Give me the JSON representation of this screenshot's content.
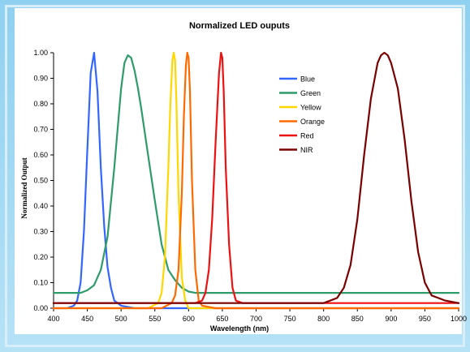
{
  "chart_data": {
    "type": "line",
    "title": "Normalized LED ouputs",
    "xlabel": "Wavelength (nm)",
    "ylabel": "Normalized Output",
    "xlim": [
      400,
      1000
    ],
    "ylim": [
      0,
      1
    ],
    "x_ticks": [
      "400",
      "450",
      "500",
      "550",
      "600",
      "650",
      "700",
      "750",
      "800",
      "850",
      "900",
      "950",
      "1000"
    ],
    "y_ticks": [
      "0.00",
      "0.10",
      "0.20",
      "0.30",
      "0.40",
      "0.50",
      "0.60",
      "0.70",
      "0.80",
      "0.90",
      "1.00"
    ],
    "grid": false,
    "legend_position": "upper-middle-right",
    "series": [
      {
        "name": "Blue",
        "color": "#3366ff",
        "x": [
          400,
          420,
          430,
          435,
          440,
          445,
          450,
          455,
          460,
          465,
          470,
          475,
          480,
          485,
          490,
          500,
          520,
          550,
          600,
          650,
          700,
          800,
          900,
          1000
        ],
        "y": [
          0.0,
          0.0,
          0.01,
          0.03,
          0.1,
          0.3,
          0.62,
          0.92,
          1.0,
          0.85,
          0.55,
          0.32,
          0.16,
          0.08,
          0.03,
          0.01,
          0.0,
          0.0,
          0.0,
          0.0,
          0.0,
          0.0,
          0.0,
          0.0
        ]
      },
      {
        "name": "Green",
        "color": "#2e9b6a",
        "x": [
          400,
          420,
          440,
          450,
          460,
          470,
          480,
          490,
          500,
          505,
          510,
          515,
          520,
          525,
          530,
          540,
          550,
          560,
          570,
          580,
          590,
          600,
          610,
          620,
          650,
          700,
          800,
          900,
          1000
        ],
        "y": [
          0.06,
          0.06,
          0.06,
          0.07,
          0.09,
          0.15,
          0.28,
          0.55,
          0.86,
          0.96,
          0.99,
          0.98,
          0.93,
          0.86,
          0.78,
          0.6,
          0.42,
          0.25,
          0.15,
          0.11,
          0.08,
          0.065,
          0.06,
          0.06,
          0.06,
          0.06,
          0.06,
          0.06,
          0.06
        ]
      },
      {
        "name": "Yellow",
        "color": "#ffd700",
        "x": [
          400,
          540,
          555,
          560,
          565,
          570,
          573,
          576,
          578,
          580,
          582,
          585,
          590,
          595,
          600,
          620,
          700,
          800,
          1000
        ],
        "y": [
          0.0,
          0.0,
          0.02,
          0.06,
          0.2,
          0.55,
          0.8,
          0.97,
          1.0,
          0.97,
          0.8,
          0.45,
          0.12,
          0.03,
          0.0,
          0.0,
          0.0,
          0.0,
          0.0
        ]
      },
      {
        "name": "Orange",
        "color": "#ff6a00",
        "x": [
          400,
          560,
          575,
          580,
          585,
          590,
          593,
          596,
          598,
          600,
          602,
          605,
          610,
          615,
          620,
          640,
          700,
          800,
          1000
        ],
        "y": [
          0.0,
          0.0,
          0.02,
          0.05,
          0.15,
          0.45,
          0.75,
          0.95,
          1.0,
          0.98,
          0.85,
          0.5,
          0.15,
          0.03,
          0.01,
          0.0,
          0.0,
          0.0,
          0.0
        ]
      },
      {
        "name": "Red",
        "color": "#ee1111",
        "x": [
          400,
          610,
          620,
          625,
          630,
          635,
          640,
          645,
          648,
          650,
          652,
          655,
          660,
          665,
          670,
          680,
          700,
          800,
          1000
        ],
        "y": [
          0.02,
          0.02,
          0.03,
          0.06,
          0.15,
          0.35,
          0.65,
          0.92,
          1.0,
          0.98,
          0.85,
          0.55,
          0.25,
          0.08,
          0.03,
          0.02,
          0.02,
          0.02,
          0.02
        ]
      },
      {
        "name": "NIR",
        "color": "#7a0000",
        "x": [
          400,
          500,
          600,
          700,
          800,
          820,
          830,
          840,
          850,
          860,
          870,
          880,
          885,
          890,
          895,
          900,
          910,
          920,
          930,
          940,
          950,
          960,
          970,
          980,
          1000
        ],
        "y": [
          0.02,
          0.02,
          0.02,
          0.02,
          0.02,
          0.04,
          0.08,
          0.17,
          0.35,
          0.6,
          0.82,
          0.96,
          0.99,
          1.0,
          0.99,
          0.96,
          0.86,
          0.66,
          0.42,
          0.22,
          0.1,
          0.05,
          0.04,
          0.03,
          0.02
        ]
      }
    ]
  }
}
